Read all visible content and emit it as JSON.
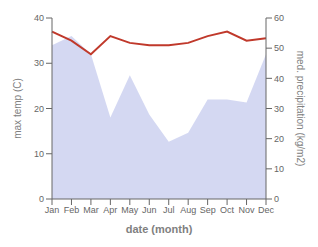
{
  "chart_data": {
    "type": "line",
    "xlabel": "date (month)",
    "ylabel": "max temp (C)",
    "y2label": "med. precipitation (kg/m2)",
    "categories": [
      "Jan",
      "Feb",
      "Mar",
      "Apr",
      "May",
      "Jun",
      "Jul",
      "Aug",
      "Sep",
      "Oct",
      "Nov",
      "Dec"
    ],
    "series": [
      {
        "type": "area",
        "axis": "y2",
        "color": "#b0b8e8",
        "values": [
          51,
          54,
          48,
          27,
          41,
          28,
          19,
          22,
          33,
          33,
          32,
          48
        ]
      },
      {
        "type": "line",
        "axis": "y",
        "color": "#c0392b",
        "values": [
          37,
          35,
          32,
          36,
          34.5,
          34,
          34,
          34.5,
          36,
          37,
          35,
          35.5
        ]
      }
    ],
    "ylim": [
      0,
      40
    ],
    "yticks": [
      0,
      10,
      20,
      30,
      40
    ],
    "y2lim": [
      0,
      60
    ],
    "y2ticks": [
      0,
      10,
      20,
      30,
      40,
      50,
      60
    ],
    "grid": false
  }
}
